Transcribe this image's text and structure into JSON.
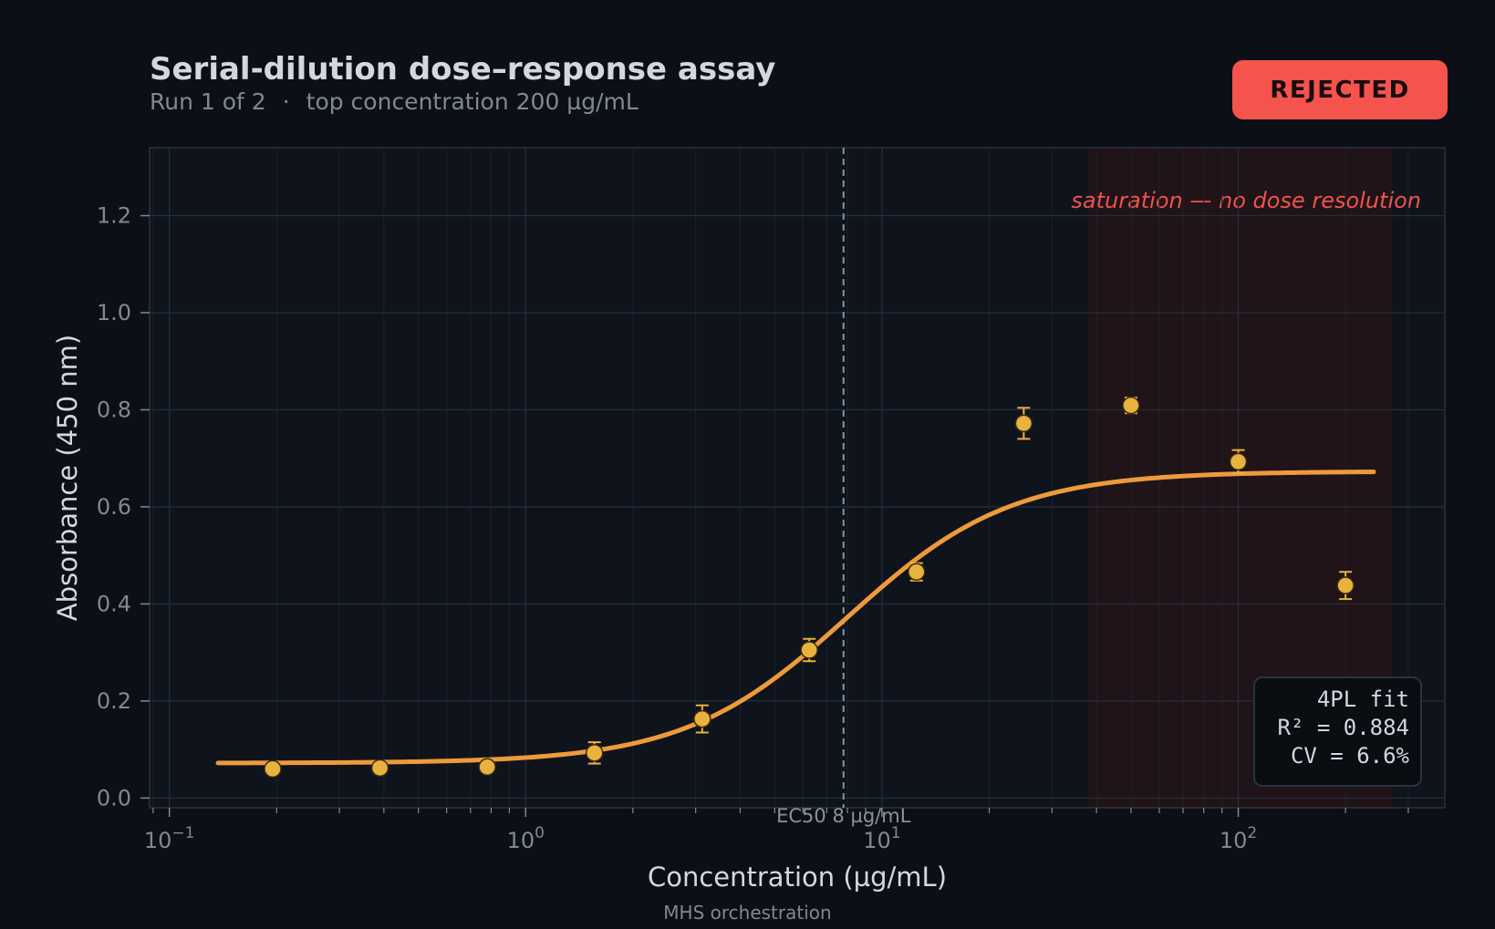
{
  "header": {
    "title": "Serial-dilution dose–response assay",
    "run": "Run 1 of 2",
    "separator": "·",
    "top_concentration": "top concentration 200 µg/mL"
  },
  "status": {
    "label": "REJECTED",
    "color": "#f5534d"
  },
  "fit_box": {
    "line1": "4PL fit",
    "line2": "R² = 0.884",
    "line3": "CV = 6.6%"
  },
  "footer": "MHS orchestration",
  "chart_data": {
    "type": "scatter",
    "xlabel": "Concentration  (µg/mL)",
    "ylabel": "Absorbance  (450 nm)",
    "x_scale": "log",
    "xlim": [
      0.088,
      380
    ],
    "ylim": [
      -0.02,
      1.34
    ],
    "x_ticks": [
      {
        "value": 0.1,
        "base": "10",
        "exp": "−1"
      },
      {
        "value": 1,
        "base": "10",
        "exp": "0"
      },
      {
        "value": 10,
        "base": "10",
        "exp": "1"
      },
      {
        "value": 100,
        "base": "10",
        "exp": "2"
      }
    ],
    "y_ticks": [
      {
        "value": 0.0,
        "label": "0.0"
      },
      {
        "value": 0.2,
        "label": "0.2"
      },
      {
        "value": 0.4,
        "label": "0.4"
      },
      {
        "value": 0.6,
        "label": "0.6"
      },
      {
        "value": 0.8,
        "label": "0.8"
      },
      {
        "value": 1.0,
        "label": "1.0"
      },
      {
        "value": 1.2,
        "label": "1.2"
      }
    ],
    "grid": true,
    "points": [
      {
        "x": 0.195,
        "y": 0.06,
        "err": 0.006
      },
      {
        "x": 0.39,
        "y": 0.062,
        "err": 0.006
      },
      {
        "x": 0.78,
        "y": 0.064,
        "err": 0.005
      },
      {
        "x": 1.56,
        "y": 0.093,
        "err": 0.022
      },
      {
        "x": 3.13,
        "y": 0.163,
        "err": 0.028
      },
      {
        "x": 6.25,
        "y": 0.305,
        "err": 0.023
      },
      {
        "x": 12.5,
        "y": 0.466,
        "err": 0.018
      },
      {
        "x": 25,
        "y": 0.772,
        "err": 0.032
      },
      {
        "x": 50,
        "y": 0.809,
        "err": 0.016
      },
      {
        "x": 100,
        "y": 0.693,
        "err": 0.024
      },
      {
        "x": 200,
        "y": 0.438,
        "err": 0.028
      }
    ],
    "fit": {
      "model": "4PL",
      "bottom": 0.072,
      "top": 0.673,
      "ec50": 8,
      "hill": 1.9,
      "x_range": [
        0.137,
        240
      ]
    },
    "ec50_label": "EC50 8 µg/mL",
    "ec50_line_x": 7.8,
    "saturation_region": {
      "x_start": 38,
      "x_end": 270,
      "label": "saturation — no dose resolution"
    },
    "colors": {
      "curve": "#ee9a3c",
      "points": "#e8b23f",
      "saturation_label": "#f0524c",
      "saturation_fill": "#221419"
    }
  }
}
